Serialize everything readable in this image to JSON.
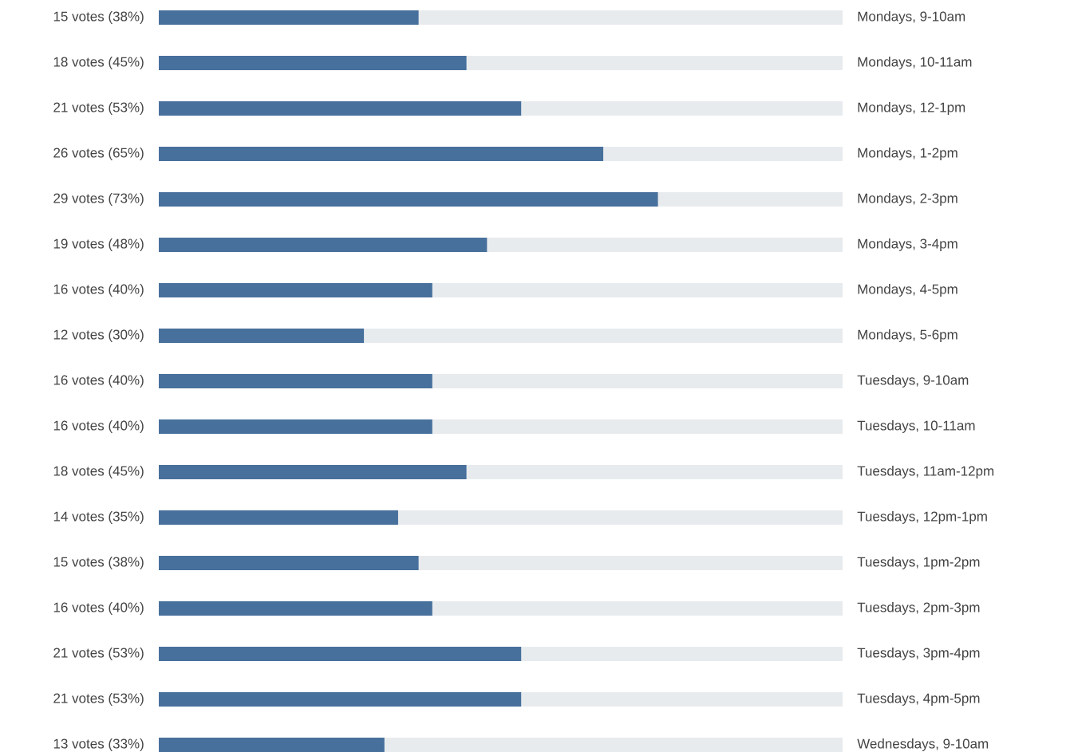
{
  "chart_data": {
    "type": "bar",
    "orientation": "horizontal",
    "stacked": true,
    "xlim": [
      0,
      100
    ],
    "categories": [
      "Mondays, 9-10am",
      "Mondays, 10-11am",
      "Mondays, 12-1pm",
      "Mondays, 1-2pm",
      "Mondays, 2-3pm",
      "Mondays, 3-4pm",
      "Mondays, 4-5pm",
      "Mondays, 5-6pm",
      "Tuesdays, 9-10am",
      "Tuesdays, 10-11am",
      "Tuesdays, 11am-12pm",
      "Tuesdays, 12pm-1pm",
      "Tuesdays, 1pm-2pm",
      "Tuesdays, 2pm-3pm",
      "Tuesdays, 3pm-4pm",
      "Tuesdays, 4pm-5pm",
      "Wednesdays, 9-10am"
    ],
    "series": [
      {
        "color": "#48709c",
        "values": [
          38,
          45,
          53,
          65,
          73,
          48,
          40,
          30,
          40,
          40,
          45,
          35,
          38,
          40,
          53,
          53,
          33
        ],
        "value_labels": [
          "15 votes (38%)",
          "18 votes (45%)",
          "21 votes (53%)",
          "26 votes (65%)",
          "29 votes (73%)",
          "19 votes (48%)",
          "16 votes (40%)",
          "12 votes (30%)",
          "16 votes (40%)",
          "16 votes (40%)",
          "18 votes (45%)",
          "14 votes (35%)",
          "15 votes (38%)",
          "16 votes (40%)",
          "21 votes (53%)",
          "21 votes (53%)",
          "13 votes (33%)"
        ]
      },
      {
        "color": "#e8ebee",
        "values": [
          62,
          55,
          47,
          35,
          27,
          52,
          60,
          70,
          60,
          60,
          55,
          65,
          62,
          60,
          47,
          47,
          67
        ]
      }
    ]
  }
}
